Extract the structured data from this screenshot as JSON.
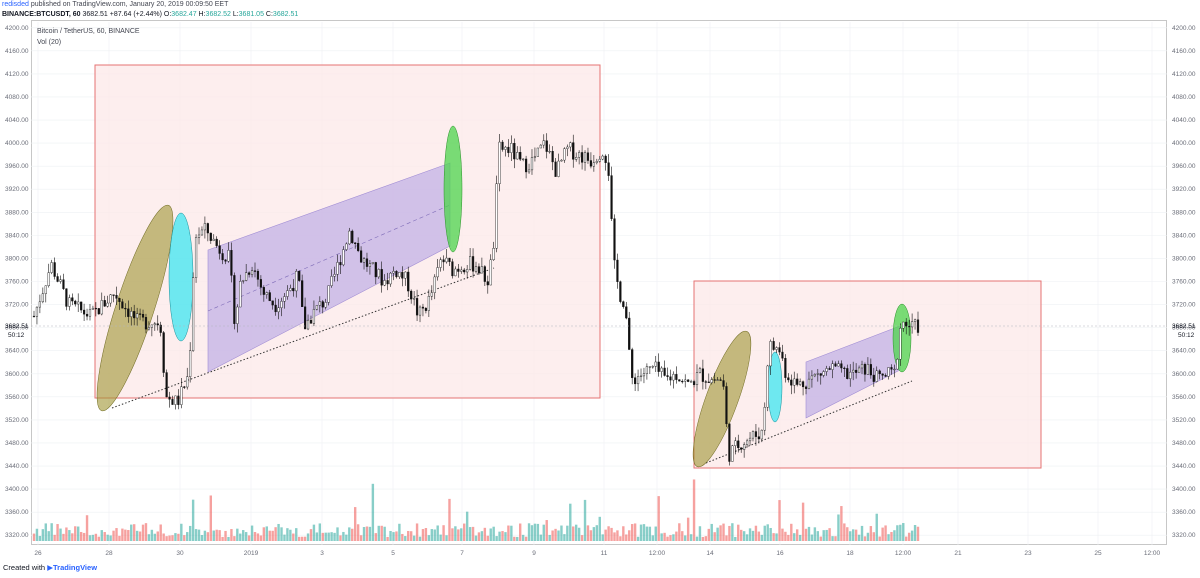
{
  "header": {
    "user": "redisded",
    "published_text": "published on TradingView.com, January 20, 2019 00:09:50 EET",
    "symbol_line": "BINANCE:BTCUSDT, 60",
    "last": "3682.51",
    "change": "+87.64 (+2.44%)",
    "open_label": "O:",
    "open": "3682.47",
    "high_label": "H:",
    "high": "3682.52",
    "low_label": "L:",
    "low": "3681.05",
    "close_label": "C:",
    "close": "3682.51"
  },
  "legend": {
    "title": "Bitcoin / TetherUS, 60, BINANCE",
    "indicator": "Vol (20)"
  },
  "footer": {
    "created_with": "Created with",
    "brand": "TradingView"
  },
  "price_label": {
    "value": "3682.51",
    "countdown": "50:12"
  },
  "colors": {
    "up": "#26a69a",
    "down": "#ef5350",
    "box_border": "#e57373",
    "box_fill": "#fce8e8",
    "channel": "#c9b8e6",
    "olive": "#9e9532",
    "cyan": "#3ee6f0",
    "green": "#4cd44c"
  },
  "chart_data": {
    "type": "candlestick",
    "title": "Bitcoin / TetherUS, 60, BINANCE",
    "xlabel": "",
    "ylabel": "",
    "y_ticks": [
      "4200.00",
      "4160.00",
      "4120.00",
      "4080.00",
      "4040.00",
      "4000.00",
      "3960.00",
      "3920.00",
      "3880.00",
      "3840.00",
      "3800.00",
      "3760.00",
      "3720.00",
      "3680.00",
      "3640.00",
      "3600.00",
      "3560.00",
      "3520.00",
      "3480.00",
      "3440.00",
      "3400.00",
      "3360.00",
      "3320.00"
    ],
    "y_range": [
      3310,
      4210
    ],
    "x_ticks": [
      "26",
      "28",
      "30",
      "2019",
      "3",
      "5",
      "7",
      "9",
      "11",
      "12:00",
      "14",
      "16",
      "18",
      "12:00",
      "21",
      "23",
      "25",
      "12:00"
    ],
    "price_path": [
      [
        0,
        3700
      ],
      [
        3,
        3790
      ],
      [
        6,
        3720
      ],
      [
        10,
        3700
      ],
      [
        14,
        3740
      ],
      [
        18,
        3690
      ],
      [
        22,
        3690
      ],
      [
        23,
        3560
      ],
      [
        25,
        3550
      ],
      [
        27,
        3600
      ],
      [
        28,
        3840
      ],
      [
        30,
        3850
      ],
      [
        32,
        3820
      ],
      [
        34,
        3800
      ],
      [
        35,
        3690
      ],
      [
        36,
        3760
      ],
      [
        38,
        3790
      ],
      [
        40,
        3740
      ],
      [
        42,
        3720
      ],
      [
        44,
        3740
      ],
      [
        46,
        3770
      ],
      [
        47,
        3680
      ],
      [
        49,
        3710
      ],
      [
        51,
        3730
      ],
      [
        53,
        3790
      ],
      [
        55,
        3850
      ],
      [
        57,
        3800
      ],
      [
        59,
        3780
      ],
      [
        61,
        3760
      ],
      [
        63,
        3780
      ],
      [
        65,
        3760
      ],
      [
        67,
        3700
      ],
      [
        69,
        3730
      ],
      [
        71,
        3800
      ],
      [
        73,
        3780
      ],
      [
        75,
        3790
      ],
      [
        77,
        3790
      ],
      [
        79,
        3760
      ],
      [
        80,
        3810
      ],
      [
        81,
        3990
      ],
      [
        83,
        3990
      ],
      [
        85,
        3960
      ],
      [
        87,
        3970
      ],
      [
        89,
        4000
      ],
      [
        91,
        3950
      ],
      [
        93,
        3990
      ],
      [
        95,
        3980
      ],
      [
        97,
        3970
      ],
      [
        99,
        3990
      ],
      [
        100,
        3970
      ],
      [
        101,
        3790
      ],
      [
        102,
        3740
      ],
      [
        103,
        3720
      ],
      [
        104,
        3590
      ],
      [
        106,
        3600
      ],
      [
        108,
        3610
      ],
      [
        110,
        3590
      ],
      [
        112,
        3600
      ],
      [
        114,
        3580
      ],
      [
        116,
        3600
      ],
      [
        118,
        3590
      ],
      [
        120,
        3590
      ],
      [
        121,
        3460
      ],
      [
        123,
        3480
      ],
      [
        125,
        3490
      ],
      [
        127,
        3500
      ],
      [
        128,
        3650
      ],
      [
        130,
        3640
      ],
      [
        131,
        3600
      ],
      [
        133,
        3580
      ],
      [
        135,
        3590
      ],
      [
        137,
        3600
      ],
      [
        139,
        3610
      ],
      [
        141,
        3600
      ],
      [
        143,
        3600
      ],
      [
        145,
        3610
      ],
      [
        147,
        3590
      ],
      [
        149,
        3600
      ],
      [
        150,
        3600
      ],
      [
        151,
        3690
      ],
      [
        153,
        3680
      ],
      [
        154,
        3682.51
      ]
    ],
    "annotations": {
      "boxes": 2,
      "channels": 2,
      "ellipses": [
        "olive",
        "cyan",
        "green",
        "olive",
        "cyan",
        "green"
      ]
    }
  }
}
